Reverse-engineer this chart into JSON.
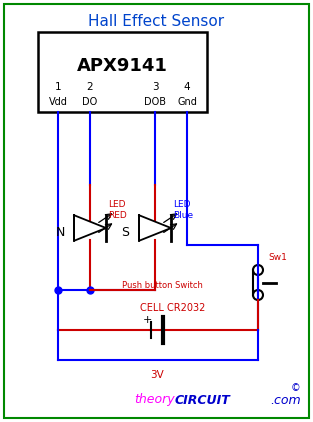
{
  "title": "Hall Effect Sensor",
  "title_color": "#0044CC",
  "bg_color": "#FFFFFF",
  "border_color": "#008800",
  "ic_label": "APX9141",
  "pin_labels_num": [
    "1",
    "2",
    "3",
    "4"
  ],
  "pin_labels_name": [
    "Vdd",
    "DO",
    "DOB",
    "Gnd"
  ],
  "led_red_label": "LED\nRED",
  "led_blue_label": "LED\nBlue",
  "n_label": "N",
  "s_label": "S",
  "cell_label": "CELL CR2032",
  "cell_voltage": "3V",
  "switch_label": "Sw1",
  "push_label": "Push button Switch",
  "theory_text": "theory",
  "circuit_text": "CIRCUIT",
  "dot_text": ".com",
  "copyright": "©",
  "blue": "#0000FF",
  "red": "#CC0000",
  "magenta": "#FF00FF",
  "dark_blue": "#0000CC"
}
